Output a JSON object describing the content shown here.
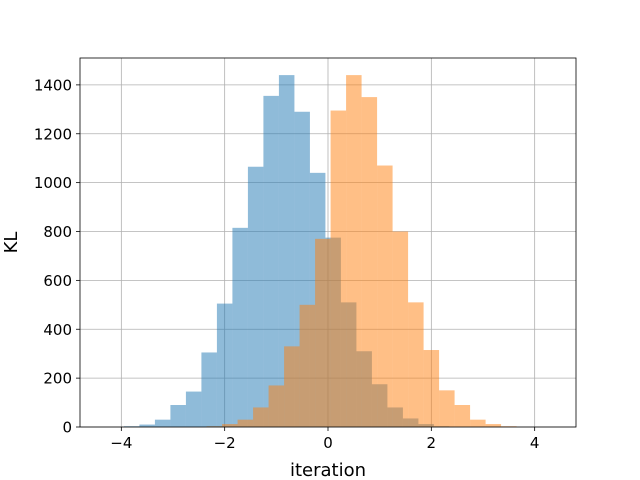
{
  "chart_data": {
    "type": "bar",
    "xlabel": "iteration",
    "ylabel": "KL",
    "xlim": [
      -4.8,
      4.8
    ],
    "ylim": [
      0,
      1510
    ],
    "grid": true,
    "x_ticks": [
      -4,
      -2,
      0,
      2,
      4
    ],
    "x_tick_labels": [
      "−4",
      "−2",
      "0",
      "2",
      "4"
    ],
    "y_ticks": [
      0,
      200,
      400,
      600,
      800,
      1000,
      1200,
      1400
    ],
    "y_tick_labels": [
      "0",
      "200",
      "400",
      "600",
      "800",
      "1000",
      "1200",
      "1400"
    ],
    "colors": {
      "blue": "#1f77b4",
      "orange": "#ff7f0e"
    },
    "bar_opacity": 0.5,
    "series": [
      {
        "color": "#1f77b4",
        "bins": [
          {
            "x0": -3.95,
            "x1": -3.65,
            "count": 3
          },
          {
            "x0": -3.65,
            "x1": -3.35,
            "count": 10
          },
          {
            "x0": -3.35,
            "x1": -3.05,
            "count": 30
          },
          {
            "x0": -3.05,
            "x1": -2.75,
            "count": 90
          },
          {
            "x0": -2.75,
            "x1": -2.45,
            "count": 145
          },
          {
            "x0": -2.45,
            "x1": -2.15,
            "count": 305
          },
          {
            "x0": -2.15,
            "x1": -1.85,
            "count": 505
          },
          {
            "x0": -1.85,
            "x1": -1.55,
            "count": 815
          },
          {
            "x0": -1.55,
            "x1": -1.25,
            "count": 1065
          },
          {
            "x0": -1.25,
            "x1": -0.95,
            "count": 1355
          },
          {
            "x0": -0.95,
            "x1": -0.65,
            "count": 1440
          },
          {
            "x0": -0.65,
            "x1": -0.35,
            "count": 1290
          },
          {
            "x0": -0.35,
            "x1": -0.05,
            "count": 1040
          },
          {
            "x0": -0.05,
            "x1": 0.25,
            "count": 775
          },
          {
            "x0": 0.25,
            "x1": 0.55,
            "count": 510
          },
          {
            "x0": 0.55,
            "x1": 0.85,
            "count": 310
          },
          {
            "x0": 0.85,
            "x1": 1.15,
            "count": 175
          },
          {
            "x0": 1.15,
            "x1": 1.45,
            "count": 80
          },
          {
            "x0": 1.45,
            "x1": 1.75,
            "count": 35
          },
          {
            "x0": 1.75,
            "x1": 2.05,
            "count": 12
          },
          {
            "x0": 2.05,
            "x1": 2.35,
            "count": 3
          }
        ]
      },
      {
        "color": "#ff7f0e",
        "bins": [
          {
            "x0": -2.35,
            "x1": -2.05,
            "count": 3
          },
          {
            "x0": -2.05,
            "x1": -1.75,
            "count": 12
          },
          {
            "x0": -1.75,
            "x1": -1.45,
            "count": 30
          },
          {
            "x0": -1.45,
            "x1": -1.15,
            "count": 80
          },
          {
            "x0": -1.15,
            "x1": -0.85,
            "count": 170
          },
          {
            "x0": -0.85,
            "x1": -0.55,
            "count": 330
          },
          {
            "x0": -0.55,
            "x1": -0.25,
            "count": 500
          },
          {
            "x0": -0.25,
            "x1": 0.05,
            "count": 770
          },
          {
            "x0": 0.05,
            "x1": 0.35,
            "count": 1295
          },
          {
            "x0": 0.35,
            "x1": 0.65,
            "count": 1440
          },
          {
            "x0": 0.65,
            "x1": 0.95,
            "count": 1350
          },
          {
            "x0": 0.95,
            "x1": 1.25,
            "count": 1070
          },
          {
            "x0": 1.25,
            "x1": 1.55,
            "count": 800
          },
          {
            "x0": 1.55,
            "x1": 1.85,
            "count": 510
          },
          {
            "x0": 1.85,
            "x1": 2.15,
            "count": 315
          },
          {
            "x0": 2.15,
            "x1": 2.45,
            "count": 150
          },
          {
            "x0": 2.45,
            "x1": 2.75,
            "count": 90
          },
          {
            "x0": 2.75,
            "x1": 3.05,
            "count": 30
          },
          {
            "x0": 3.05,
            "x1": 3.35,
            "count": 12
          },
          {
            "x0": 3.35,
            "x1": 3.65,
            "count": 3
          }
        ]
      }
    ]
  }
}
